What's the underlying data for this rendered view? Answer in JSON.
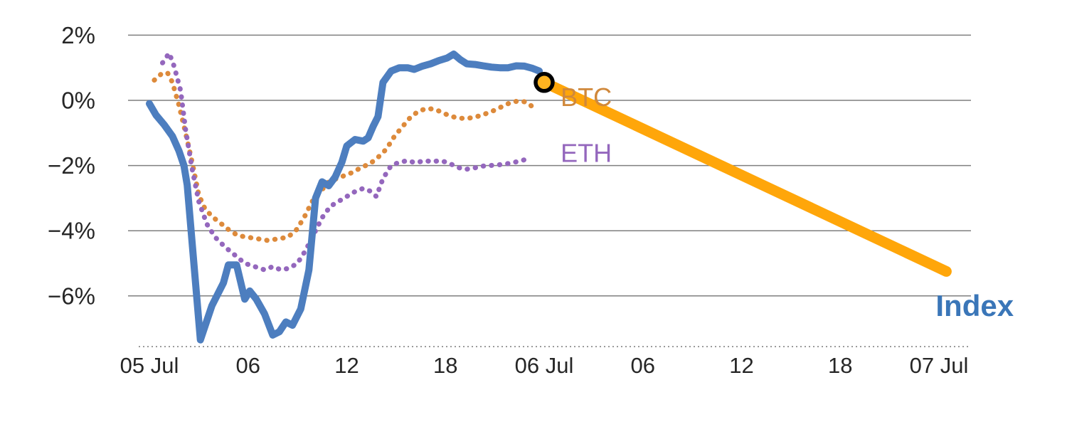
{
  "chart_data": {
    "type": "line",
    "title": "",
    "xlabel": "",
    "ylabel": "",
    "x_unit": "hours since 05 Jul 00:00",
    "xlim_hours": [
      0,
      48.5
    ],
    "ylim_percent": [
      -7.6,
      2.3
    ],
    "grid": "horizontal",
    "legend": "inline labels at line ends",
    "colors": {
      "grid": "#7f7f7f",
      "axis": "#9b9b9b",
      "tick_text": "#262626",
      "background": "#ffffff"
    },
    "y_ticks": [
      {
        "value": 2,
        "label": "2%"
      },
      {
        "value": 0,
        "label": "0%"
      },
      {
        "value": -2,
        "label": "−2%"
      },
      {
        "value": -4,
        "label": "−4%"
      },
      {
        "value": -6,
        "label": "−6%"
      }
    ],
    "x_ticks": [
      {
        "hour": 0,
        "label": "05 Jul"
      },
      {
        "hour": 6,
        "label": "06"
      },
      {
        "hour": 12,
        "label": "12"
      },
      {
        "hour": 18,
        "label": "18"
      },
      {
        "hour": 24,
        "label": "06 Jul"
      },
      {
        "hour": 30,
        "label": "06"
      },
      {
        "hour": 36,
        "label": "12"
      },
      {
        "hour": 42,
        "label": "18"
      },
      {
        "hour": 48,
        "label": "07 Jul"
      }
    ],
    "series": [
      {
        "name": "BTC",
        "color": "#dd8a3b",
        "style": "dotted",
        "width": 7,
        "points": [
          [
            0.3,
            0.62
          ],
          [
            0.7,
            0.8
          ],
          [
            1.1,
            0.85
          ],
          [
            1.4,
            0.55
          ],
          [
            1.8,
            -0.15
          ],
          [
            2.2,
            -1.0
          ],
          [
            2.6,
            -1.9
          ],
          [
            3.0,
            -2.9
          ],
          [
            3.4,
            -3.35
          ],
          [
            3.9,
            -3.6
          ],
          [
            4.4,
            -3.8
          ],
          [
            4.9,
            -4.0
          ],
          [
            5.4,
            -4.15
          ],
          [
            6.0,
            -4.2
          ],
          [
            6.6,
            -4.25
          ],
          [
            7.2,
            -4.3
          ],
          [
            7.8,
            -4.25
          ],
          [
            8.4,
            -4.2
          ],
          [
            8.9,
            -4.0
          ],
          [
            9.4,
            -3.6
          ],
          [
            9.9,
            -3.1
          ],
          [
            10.4,
            -2.8
          ],
          [
            10.9,
            -2.5
          ],
          [
            11.4,
            -2.4
          ],
          [
            11.9,
            -2.3
          ],
          [
            12.4,
            -2.2
          ],
          [
            12.9,
            -2.05
          ],
          [
            13.4,
            -1.95
          ],
          [
            13.9,
            -1.75
          ],
          [
            14.4,
            -1.5
          ],
          [
            14.9,
            -1.1
          ],
          [
            15.4,
            -0.8
          ],
          [
            15.9,
            -0.5
          ],
          [
            16.4,
            -0.32
          ],
          [
            16.9,
            -0.25
          ],
          [
            17.4,
            -0.28
          ],
          [
            17.9,
            -0.4
          ],
          [
            18.4,
            -0.5
          ],
          [
            18.9,
            -0.55
          ],
          [
            19.4,
            -0.55
          ],
          [
            19.9,
            -0.5
          ],
          [
            20.4,
            -0.42
          ],
          [
            20.9,
            -0.32
          ],
          [
            21.4,
            -0.2
          ],
          [
            21.9,
            -0.08
          ],
          [
            22.4,
            -0.02
          ],
          [
            22.9,
            -0.05
          ],
          [
            23.3,
            -0.2
          ],
          [
            23.6,
            -0.3
          ]
        ]
      },
      {
        "name": "ETH",
        "color": "#9467bd",
        "style": "dotted",
        "width": 7,
        "points": [
          [
            0.8,
            1.15
          ],
          [
            1.2,
            1.45
          ],
          [
            1.5,
            1.05
          ],
          [
            1.9,
            0.3
          ],
          [
            2.2,
            -0.9
          ],
          [
            2.6,
            -2.1
          ],
          [
            3.0,
            -3.1
          ],
          [
            3.5,
            -3.8
          ],
          [
            4.0,
            -4.2
          ],
          [
            4.6,
            -4.5
          ],
          [
            5.2,
            -4.75
          ],
          [
            5.8,
            -5.0
          ],
          [
            6.4,
            -5.1
          ],
          [
            7.0,
            -5.2
          ],
          [
            7.5,
            -5.1
          ],
          [
            8.0,
            -5.2
          ],
          [
            8.5,
            -5.15
          ],
          [
            9.0,
            -5.0
          ],
          [
            9.5,
            -4.6
          ],
          [
            10.0,
            -4.1
          ],
          [
            10.5,
            -3.6
          ],
          [
            11.0,
            -3.25
          ],
          [
            11.5,
            -3.1
          ],
          [
            12.0,
            -2.95
          ],
          [
            12.5,
            -2.8
          ],
          [
            13.0,
            -2.7
          ],
          [
            13.4,
            -2.78
          ],
          [
            13.8,
            -2.95
          ],
          [
            14.2,
            -2.4
          ],
          [
            14.7,
            -2.0
          ],
          [
            15.2,
            -1.9
          ],
          [
            15.7,
            -1.85
          ],
          [
            16.2,
            -1.92
          ],
          [
            16.7,
            -1.85
          ],
          [
            17.2,
            -1.88
          ],
          [
            17.7,
            -1.85
          ],
          [
            18.2,
            -1.92
          ],
          [
            18.7,
            -2.05
          ],
          [
            19.2,
            -2.12
          ],
          [
            19.7,
            -2.08
          ],
          [
            20.2,
            -2.02
          ],
          [
            20.7,
            -2.0
          ],
          [
            21.2,
            -1.98
          ],
          [
            21.7,
            -1.95
          ],
          [
            22.2,
            -1.9
          ],
          [
            22.6,
            -1.85
          ],
          [
            23.0,
            -1.8
          ]
        ]
      },
      {
        "name": "Index",
        "color": "#4d7ebf",
        "style": "solid",
        "width": 10,
        "points": [
          [
            0,
            -0.1
          ],
          [
            0.4,
            -0.45
          ],
          [
            0.9,
            -0.75
          ],
          [
            1.4,
            -1.1
          ],
          [
            1.8,
            -1.55
          ],
          [
            2.1,
            -2.0
          ],
          [
            2.3,
            -2.6
          ],
          [
            3.1,
            -7.35
          ],
          [
            3.8,
            -6.3
          ],
          [
            4.5,
            -5.6
          ],
          [
            4.8,
            -5.05
          ],
          [
            5.3,
            -5.05
          ],
          [
            5.8,
            -6.1
          ],
          [
            6.1,
            -5.85
          ],
          [
            6.5,
            -6.1
          ],
          [
            7.0,
            -6.55
          ],
          [
            7.5,
            -7.2
          ],
          [
            7.9,
            -7.1
          ],
          [
            8.3,
            -6.8
          ],
          [
            8.7,
            -6.9
          ],
          [
            9.2,
            -6.4
          ],
          [
            9.7,
            -5.2
          ],
          [
            10.1,
            -3.0
          ],
          [
            10.5,
            -2.5
          ],
          [
            10.9,
            -2.62
          ],
          [
            11.3,
            -2.35
          ],
          [
            11.7,
            -1.9
          ],
          [
            12.0,
            -1.4
          ],
          [
            12.5,
            -1.2
          ],
          [
            13.0,
            -1.25
          ],
          [
            13.3,
            -1.15
          ],
          [
            13.6,
            -0.8
          ],
          [
            13.9,
            -0.5
          ],
          [
            14.2,
            0.55
          ],
          [
            14.7,
            0.9
          ],
          [
            15.2,
            1.0
          ],
          [
            15.7,
            1.0
          ],
          [
            16.1,
            0.95
          ],
          [
            16.6,
            1.05
          ],
          [
            17.1,
            1.12
          ],
          [
            17.6,
            1.22
          ],
          [
            18.1,
            1.3
          ],
          [
            18.5,
            1.42
          ],
          [
            18.9,
            1.25
          ],
          [
            19.3,
            1.12
          ],
          [
            19.8,
            1.1
          ],
          [
            20.3,
            1.06
          ],
          [
            20.8,
            1.02
          ],
          [
            21.3,
            1.0
          ],
          [
            21.8,
            1.0
          ],
          [
            22.3,
            1.06
          ],
          [
            22.8,
            1.05
          ],
          [
            23.3,
            0.98
          ],
          [
            23.7,
            0.9
          ]
        ]
      },
      {
        "name": "BTC projection",
        "color": "#ffa60a",
        "style": "solid",
        "width": 15,
        "points": [
          [
            24.0,
            0.55
          ],
          [
            48.45,
            -5.25
          ]
        ]
      }
    ],
    "marker": {
      "series": "BTC projection",
      "hour": 24.0,
      "percent": 0.55,
      "shape": "circle",
      "ring_color": "#000000",
      "fill_color": "#ffb420"
    },
    "annotations": [
      {
        "text": "BTC",
        "color": "#d0883b",
        "hour": 25.0,
        "percent": 0.1,
        "size": 36,
        "bold": false
      },
      {
        "text": "ETH",
        "color": "#9467bd",
        "hour": 25.0,
        "percent": -1.62,
        "size": 36,
        "bold": false
      },
      {
        "text": "Index",
        "color": "#3a76b8",
        "hour": 47.8,
        "percent": -6.3,
        "size": 42,
        "bold": true
      }
    ]
  }
}
